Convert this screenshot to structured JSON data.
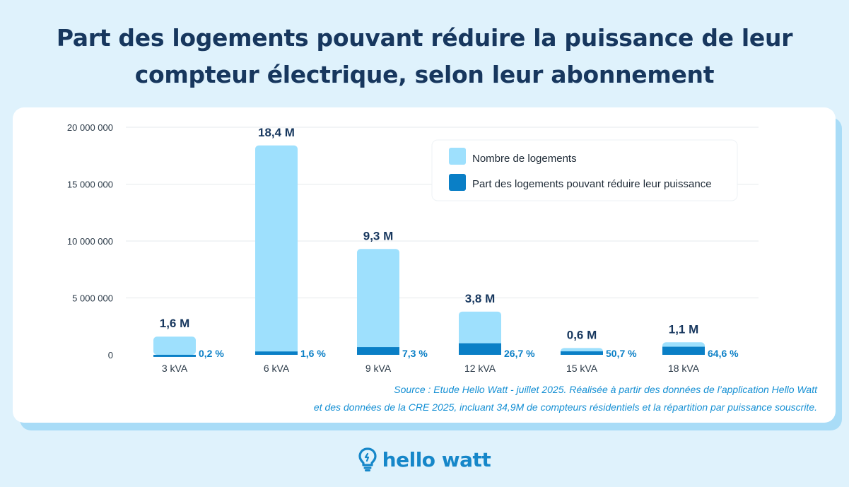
{
  "header": {
    "title_line1": "Part des logements pouvant réduire la puissance de leur",
    "title_line2": "compteur électrique, selon leur abonnement"
  },
  "chart_data": {
    "type": "bar",
    "categories": [
      "3 kVA",
      "6 kVA",
      "9 kVA",
      "12 kVA",
      "15 kVA",
      "18 kVA"
    ],
    "series": [
      {
        "name": "Nombre de logements",
        "values": [
          1600000,
          18400000,
          9300000,
          3800000,
          600000,
          1100000
        ],
        "labels": [
          "1,6 M",
          "18,4 M",
          "9,3 M",
          "3,8 M",
          "0,6 M",
          "1,1 M"
        ],
        "color": "#9ee0fd"
      },
      {
        "name": "Part des logements pouvant réduire leur puissance",
        "values": [
          3200,
          294400,
          678900,
          1014600,
          304200,
          710600
        ],
        "labels": [
          "0,2 %",
          "1,6 %",
          "7,3 %",
          "26,7 %",
          "50,7 %",
          "64,6 %"
        ],
        "color": "#0a7fc6"
      }
    ],
    "yticks": [
      "20 000 000",
      "15 000 000",
      "10 000 000",
      "5 000 000",
      "0"
    ],
    "ytick_values": [
      20000000,
      15000000,
      10000000,
      5000000,
      0
    ],
    "ylim": [
      0,
      20000000
    ],
    "grid": true,
    "legend_position": "top-right",
    "xlabel": "",
    "ylabel": ""
  },
  "source": {
    "line1": "Source : Etude Hello Watt - juillet 2025.  Réalisée à partir des données de l’application Hello Watt",
    "line2": "et des données de la CRE 2025,  incluant 34,9M de compteurs résidentiels et la répartition par puissance souscrite."
  },
  "brand": {
    "name": "hello watt",
    "icon": "lightbulb-icon",
    "color": "#1687c9"
  }
}
